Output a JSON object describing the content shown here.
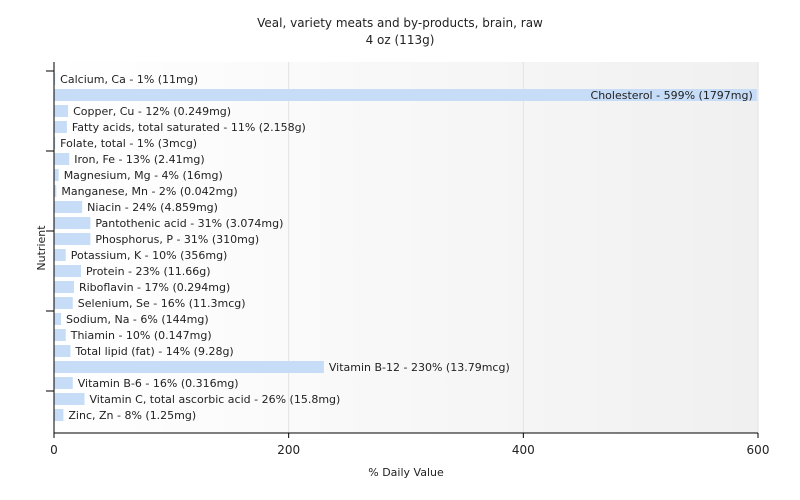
{
  "chart_data": {
    "type": "bar",
    "orientation": "horizontal",
    "title": "Veal, variety meats and by-products, brain, raw",
    "subtitle": "4 oz (113g)",
    "xlabel": "% Daily Value",
    "ylabel": "Nutrient",
    "xlim": [
      0,
      600
    ],
    "xticks": [
      "0",
      "200",
      "400",
      "600"
    ],
    "grid": true,
    "bar_color": "#c6dcf7",
    "categories": [
      "Calcium, Ca",
      "Cholesterol",
      "Copper, Cu",
      "Fatty acids, total saturated",
      "Folate, total",
      "Iron, Fe",
      "Magnesium, Mg",
      "Manganese, Mn",
      "Niacin",
      "Pantothenic acid",
      "Phosphorus, P",
      "Potassium, K",
      "Protein",
      "Riboflavin",
      "Selenium, Se",
      "Sodium, Na",
      "Thiamin",
      "Total lipid (fat)",
      "Vitamin B-12",
      "Vitamin B-6",
      "Vitamin C, total ascorbic acid",
      "Zinc, Zn"
    ],
    "values": [
      1,
      599,
      12,
      11,
      1,
      13,
      4,
      2,
      24,
      31,
      31,
      10,
      23,
      17,
      16,
      6,
      10,
      14,
      230,
      16,
      26,
      8
    ],
    "labels": [
      "Calcium, Ca - 1% (11mg)",
      "Cholesterol - 599% (1797mg)",
      "Copper, Cu - 12% (0.249mg)",
      "Fatty acids, total saturated - 11% (2.158g)",
      "Folate, total - 1% (3mcg)",
      "Iron, Fe - 13% (2.41mg)",
      "Magnesium, Mg - 4% (16mg)",
      "Manganese, Mn - 2% (0.042mg)",
      "Niacin - 24% (4.859mg)",
      "Pantothenic acid - 31% (3.074mg)",
      "Phosphorus, P - 31% (310mg)",
      "Potassium, K - 10% (356mg)",
      "Protein - 23% (11.66g)",
      "Riboflavin - 17% (0.294mg)",
      "Selenium, Se - 16% (11.3mcg)",
      "Sodium, Na - 6% (144mg)",
      "Thiamin - 10% (0.147mg)",
      "Total lipid (fat) - 14% (9.28g)",
      "Vitamin B-12 - 230% (13.79mcg)",
      "Vitamin B-6 - 16% (0.316mg)",
      "Vitamin C, total ascorbic acid - 26% (15.8mg)",
      "Zinc, Zn - 8% (1.25mg)"
    ]
  }
}
